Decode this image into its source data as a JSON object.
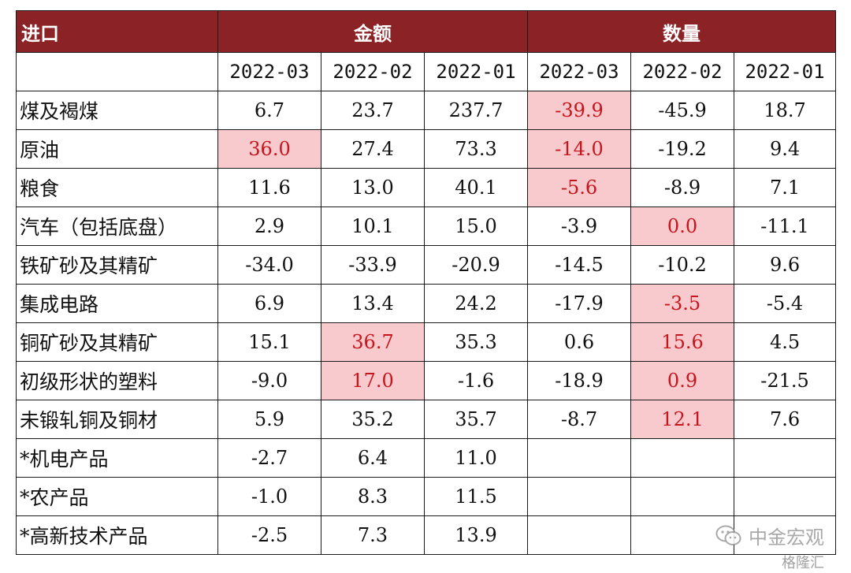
{
  "header": {
    "corner": "进口",
    "group_amount": "金额",
    "group_quantity": "数量",
    "periods": [
      "2022-03",
      "2022-02",
      "2022-01",
      "2022-03",
      "2022-02",
      "2022-01"
    ]
  },
  "rows": [
    {
      "label": "煤及褐煤",
      "values": [
        "6.7",
        "23.7",
        "237.7",
        "-39.9",
        "-45.9",
        "18.7"
      ]
    },
    {
      "label": "原油",
      "values": [
        "36.0",
        "27.4",
        "73.3",
        "-14.0",
        "-19.2",
        "9.4"
      ]
    },
    {
      "label": "粮食",
      "values": [
        "11.6",
        "13.0",
        "40.1",
        "-5.6",
        "-8.9",
        "7.1"
      ]
    },
    {
      "label": "汽车（包括底盘）",
      "values": [
        "2.9",
        "10.1",
        "15.0",
        "-3.9",
        "0.0",
        "-11.1"
      ]
    },
    {
      "label": "铁矿砂及其精矿",
      "values": [
        "-34.0",
        "-33.9",
        "-20.9",
        "-14.5",
        "-10.2",
        "9.6"
      ]
    },
    {
      "label": "集成电路",
      "values": [
        "6.9",
        "13.4",
        "24.2",
        "-17.9",
        "-3.5",
        "-5.4"
      ]
    },
    {
      "label": "铜矿砂及其精矿",
      "values": [
        "15.1",
        "36.7",
        "35.3",
        "0.6",
        "15.6",
        "4.5"
      ]
    },
    {
      "label": "初级形状的塑料",
      "values": [
        "-9.0",
        "17.0",
        "-1.6",
        "-18.9",
        "0.9",
        "-21.5"
      ]
    },
    {
      "label": "未锻轧铜及铜材",
      "values": [
        "5.9",
        "35.2",
        "35.7",
        "-8.7",
        "12.1",
        "7.6"
      ]
    },
    {
      "label": "*机电产品",
      "values": [
        "-2.7",
        "6.4",
        "11.0",
        "",
        "",
        ""
      ]
    },
    {
      "label": "*农产品",
      "values": [
        "-1.0",
        "8.3",
        "11.5",
        "",
        "",
        ""
      ]
    },
    {
      "label": "*高新技术产品",
      "values": [
        "-2.5",
        "7.3",
        "13.9",
        "",
        "",
        ""
      ]
    }
  ],
  "highlight_color": "#f8c9cd",
  "highlight_text_color": "#c4161c",
  "header_color": "#8b2326",
  "watermark": {
    "icon": "wechat-icon",
    "text": "中金宏观",
    "sub": "格隆汇"
  }
}
